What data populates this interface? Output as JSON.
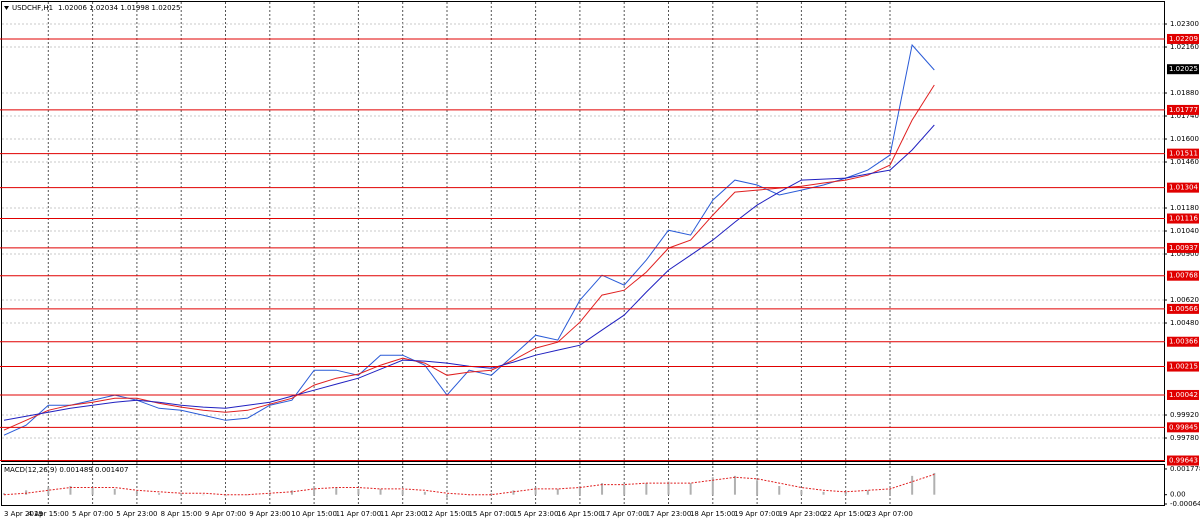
{
  "chart_data": [
    {
      "type": "line",
      "title": "USDCHF,H1",
      "quote": "1.02006 1.02034 1.01998 1.02025",
      "categories": [
        "3 Apr 2019",
        null,
        "4 Apr 15:00",
        null,
        "5 Apr 07:00",
        null,
        "5 Apr 23:00",
        null,
        "8 Apr 15:00",
        null,
        "9 Apr 07:00",
        null,
        "9 Apr 23:00",
        null,
        "10 Apr 15:00",
        null,
        "11 Apr 07:00",
        null,
        "11 Apr 23:00",
        null,
        "12 Apr 15:00",
        null,
        "15 Apr 07:00",
        null,
        "15 Apr 23:00",
        null,
        "16 Apr 15:00",
        null,
        "17 Apr 07:00",
        null,
        "17 Apr 23:00",
        null,
        "18 Apr 15:00",
        null,
        "19 Apr 07:00",
        null,
        "19 Apr 23:00",
        null,
        "22 Apr 15:00",
        null,
        "23 Apr 07:00",
        null,
        null
      ],
      "series": [
        {
          "color": "#2a5bd7",
          "values": [
            0.99797,
            0.99858,
            0.9998,
            0.9998,
            1.0001,
            1.00041,
            1.0001,
            0.99961,
            0.99949,
            0.99919,
            0.99888,
            0.99901,
            0.9998,
            1.0001,
            1.00193,
            1.00193,
            1.00162,
            1.00284,
            1.00284,
            1.00223,
            1.00041,
            1.00193,
            1.00162,
            1.00284,
            1.00406,
            1.00376,
            1.00619,
            1.00771,
            1.00711,
            1.00863,
            1.01045,
            1.01015,
            1.01228,
            1.0135,
            1.0132,
            1.01259,
            1.01289,
            1.0132,
            1.01362,
            1.01411,
            1.01502,
            1.02172,
            1.0202
          ]
        },
        {
          "color": "#e02020",
          "values": [
            0.99828,
            0.99888,
            0.99949,
            0.9998,
            0.99998,
            1.00022,
            1.00022,
            0.99992,
            0.99968,
            0.99949,
            0.99937,
            0.99949,
            0.99986,
            1.00022,
            1.00102,
            1.00144,
            1.00169,
            1.00223,
            1.00266,
            1.00236,
            1.00162,
            1.00181,
            1.00193,
            1.00254,
            1.00327,
            1.00363,
            1.00485,
            1.0065,
            1.0068,
            1.0079,
            1.00936,
            1.00985,
            1.01137,
            1.01277,
            1.01289,
            1.01301,
            1.01313,
            1.01332,
            1.0135,
            1.0138,
            1.01441,
            1.01715,
            1.01929
          ]
        },
        {
          "color": "#2020c0",
          "values": [
            0.99888,
            0.99913,
            0.99937,
            0.99961,
            0.9998,
            0.99998,
            1.0001,
            0.99998,
            0.9998,
            0.99968,
            0.99961,
            0.9998,
            0.99998,
            1.00035,
            1.00071,
            1.00108,
            1.00144,
            1.00199,
            1.00254,
            1.00248,
            1.00236,
            1.00217,
            1.00205,
            1.00242,
            1.00284,
            1.00315,
            1.00345,
            1.00437,
            1.00528,
            1.00668,
            1.00802,
            1.00893,
            1.00985,
            1.01094,
            1.01198,
            1.01277,
            1.0135,
            1.01356,
            1.01362,
            1.01387,
            1.01411,
            1.01533,
            1.01685
          ]
        }
      ],
      "ylim": [
        0.99634,
        1.02434
      ],
      "yticks": [
        {
          "value": 1.023,
          "label": "1.02300"
        },
        {
          "value": 1.0216,
          "label": "1.02160"
        },
        {
          "value": 1.0188,
          "label": "1.01880"
        },
        {
          "value": 1.0174,
          "label": "1.01740"
        },
        {
          "value": 1.016,
          "label": "1.01600"
        },
        {
          "value": 1.0146,
          "label": "1.01460"
        },
        {
          "value": 1.0118,
          "label": "1.01180"
        },
        {
          "value": 1.0104,
          "label": "1.01040"
        },
        {
          "value": 1.009,
          "label": "1.00900"
        },
        {
          "value": 1.0062,
          "label": "1.00620"
        },
        {
          "value": 1.0048,
          "label": "1.00480"
        },
        {
          "value": 0.9992,
          "label": "0.99920"
        },
        {
          "value": 0.9978,
          "label": "0.99780"
        }
      ],
      "levels": [
        1.02209,
        1.01777,
        1.01511,
        1.01304,
        1.01116,
        1.00937,
        1.00768,
        1.00566,
        1.00366,
        1.00215,
        1.00042,
        0.99845,
        0.99643
      ],
      "level_color": "#e00000",
      "current": 1.02025,
      "grid": true
    },
    {
      "type": "macd",
      "title": "MACD(12,26,9) 0.001489 0.001407",
      "series": [
        {
          "color": "#b0b0b0",
          "values": [
            0.0001,
            0.0003,
            0.0005,
            0.0006,
            0.0005,
            0.0004,
            0.0002,
            0.0001,
            0.0001,
            0.0,
            -0.0001,
            0.0,
            0.0001,
            0.0003,
            0.0006,
            0.0005,
            0.0004,
            0.0004,
            0.0003,
            0.0002,
            -0.0002,
            0.0,
            0.0001,
            0.0003,
            0.0005,
            0.0004,
            0.0006,
            0.0008,
            0.0007,
            0.0008,
            0.0009,
            0.0008,
            0.0012,
            0.0013,
            0.001,
            0.0006,
            0.0003,
            0.0002,
            0.0002,
            0.0003,
            0.0004,
            0.0013,
            0.0015
          ]
        },
        {
          "color": "#e02020",
          "values": [
            0.0,
            0.0001,
            0.0003,
            0.0005,
            0.0005,
            0.0005,
            0.0003,
            0.0002,
            0.0001,
            0.0001,
            0.0,
            0.0,
            0.0001,
            0.0002,
            0.0004,
            0.0005,
            0.0005,
            0.0004,
            0.0004,
            0.0003,
            0.0001,
            0.0,
            0.0,
            0.0002,
            0.0004,
            0.0004,
            0.0005,
            0.0007,
            0.0007,
            0.0008,
            0.0008,
            0.0008,
            0.001,
            0.0012,
            0.0011,
            0.0008,
            0.0005,
            0.0003,
            0.0002,
            0.0003,
            0.0004,
            0.0009,
            0.0014
          ]
        }
      ],
      "ylim": [
        -0.000712,
        0.00212
      ],
      "yticks": [
        0.001778,
        {
          "value": 0,
          "label": "0.00"
        },
        -0.000642
      ]
    }
  ]
}
